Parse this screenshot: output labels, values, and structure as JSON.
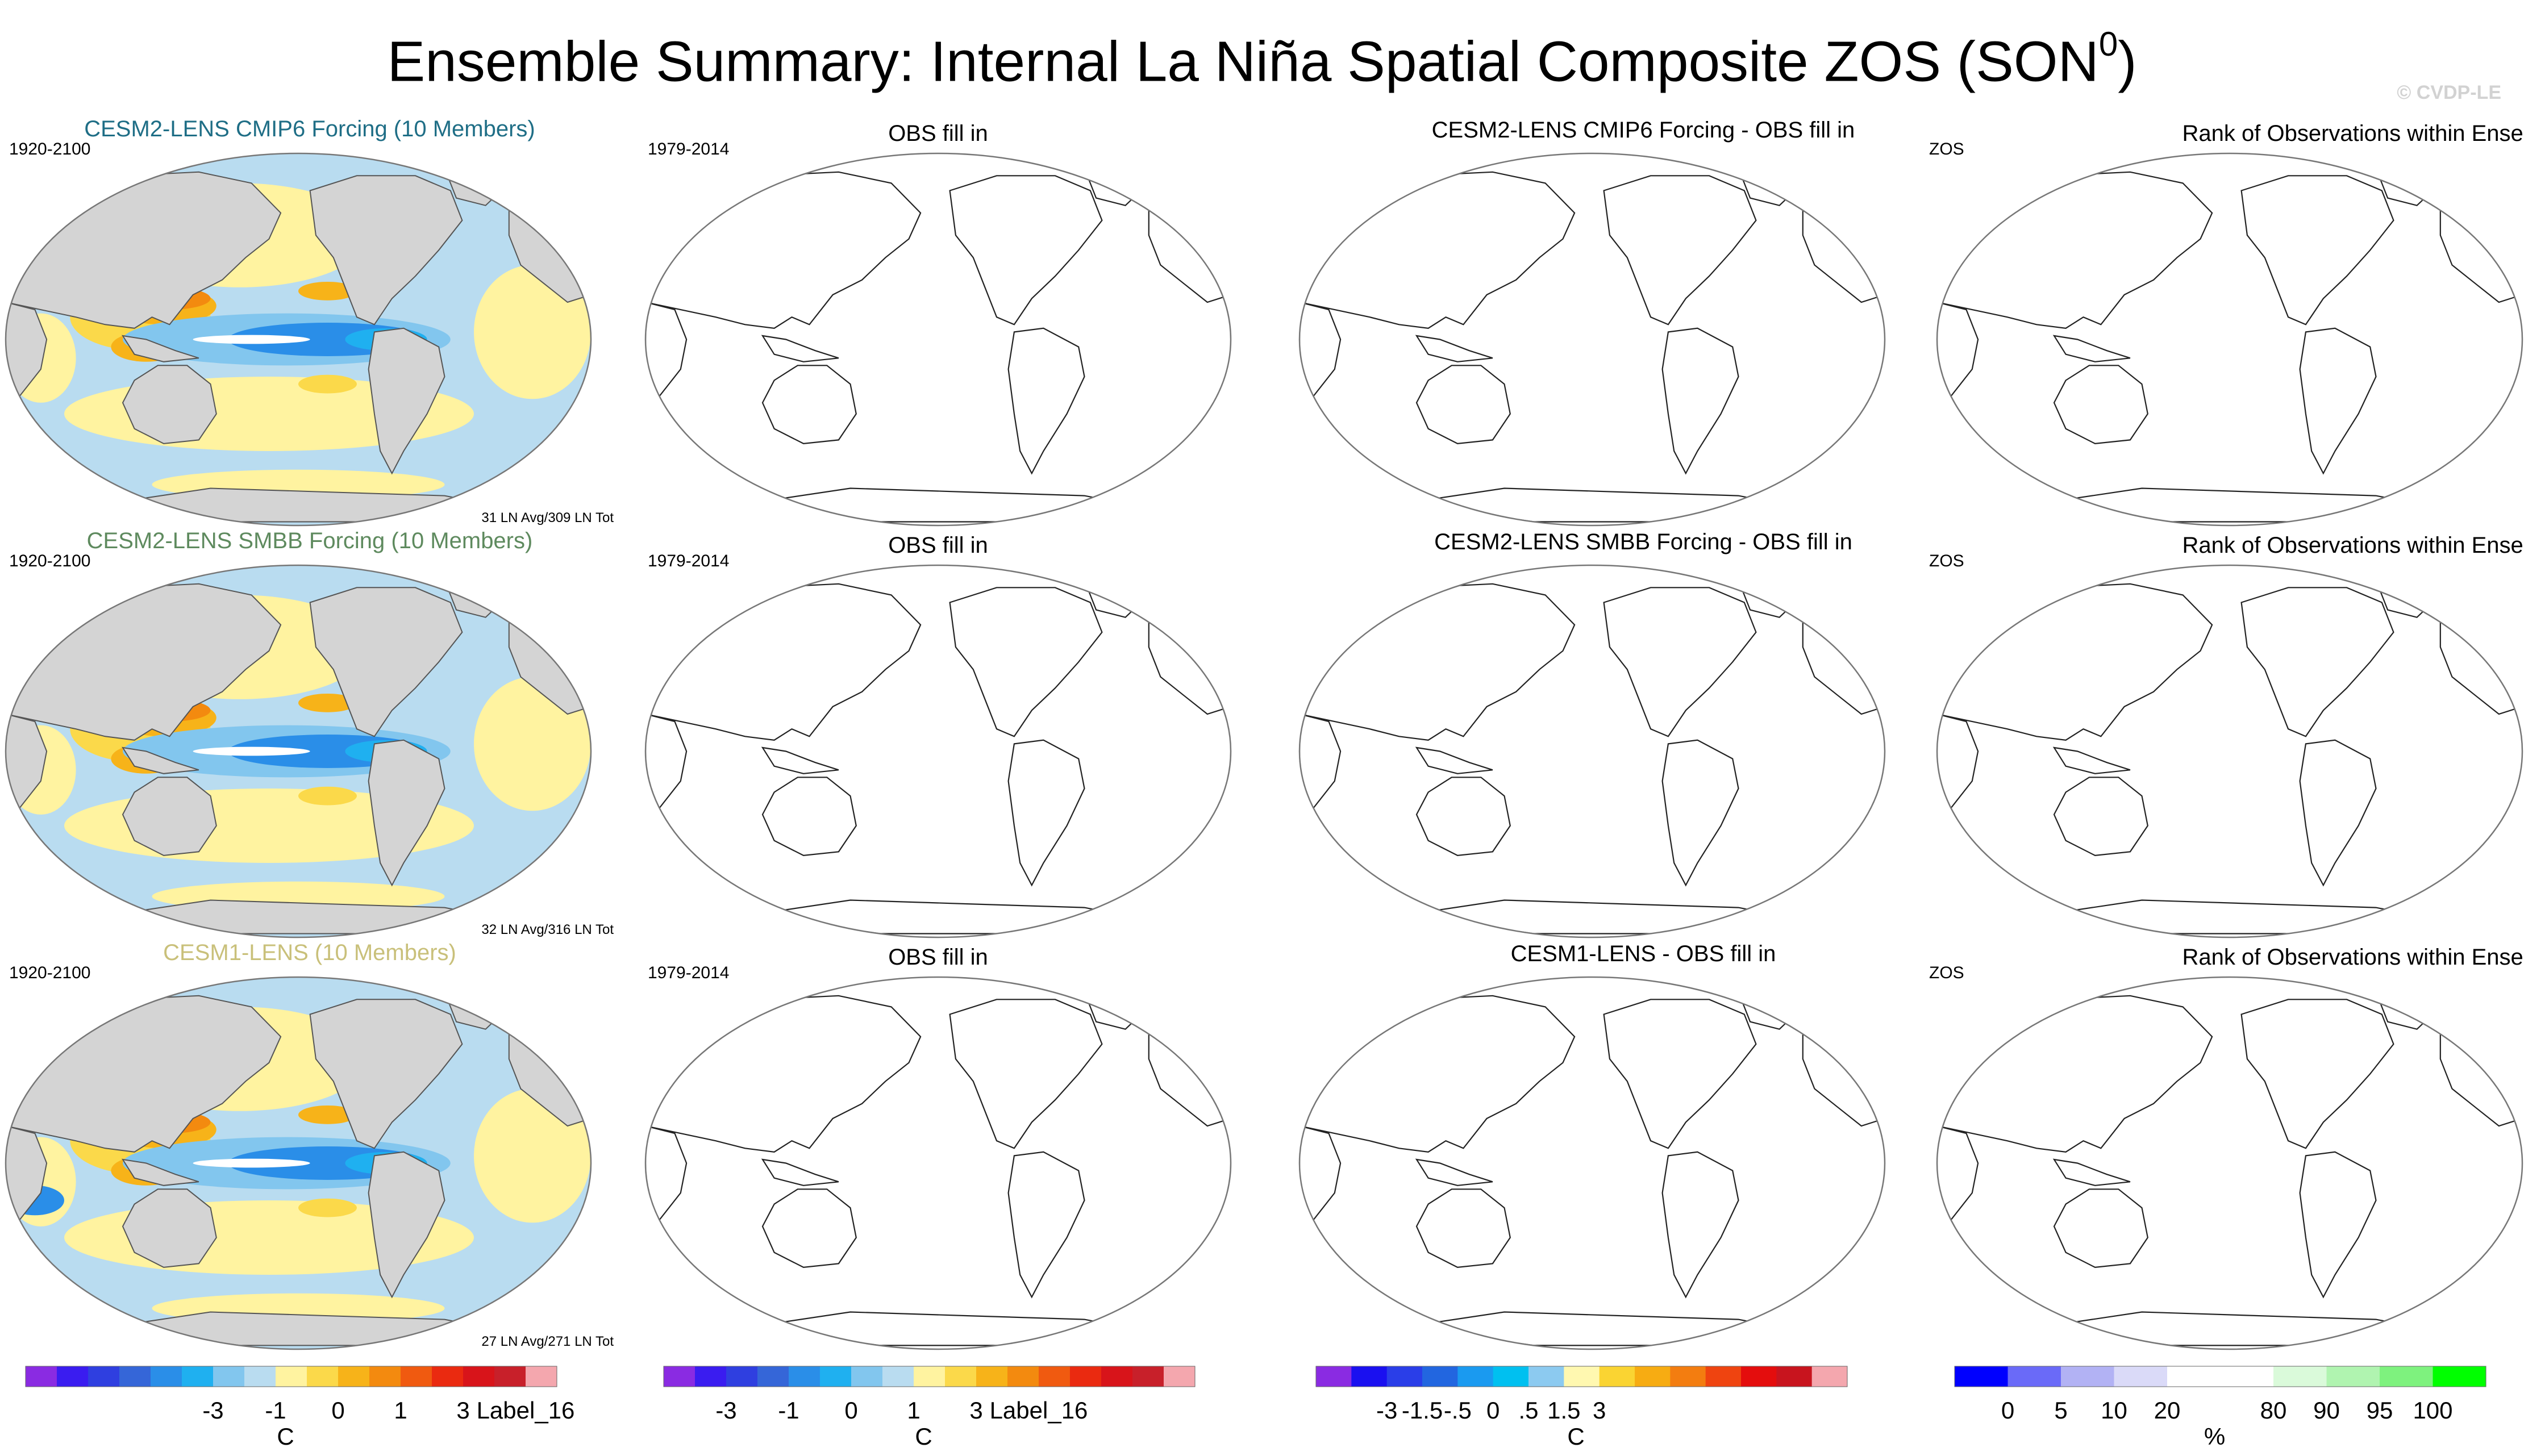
{
  "title": {
    "main": "Ensemble Summary: Internal La Niña Spatial Composite ZOS (SON",
    "superscript": "0",
    "close": ")"
  },
  "watermark": "© CVDP-LE",
  "colors": {
    "row_titles": [
      "#1f6e86",
      "#5e8a5e",
      "#c9c07a"
    ],
    "land": "#d4d4d4",
    "ocean_base": "#b9dcf0",
    "outline": "#555555"
  },
  "rows": [
    {
      "model_title": "CESM2-LENS CMIP6 Forcing (10 Members)",
      "model_years": "1920-2100",
      "model_count": "31 LN Avg/309 LN Tot",
      "obs_title": "OBS fill in",
      "obs_years": "1979-2014",
      "diff_title": "CESM2-LENS CMIP6 Forcing - OBS fill in",
      "rank_title": "Rank of Observations within Ensemble",
      "rank_var": "ZOS"
    },
    {
      "model_title": "CESM2-LENS SMBB Forcing (10 Members)",
      "model_years": "1920-2100",
      "model_count": "32 LN Avg/316 LN Tot",
      "obs_title": "OBS fill in",
      "obs_years": "1979-2014",
      "diff_title": "CESM2-LENS SMBB Forcing - OBS fill in",
      "rank_title": "Rank of Observations within Ensemble",
      "rank_var": "ZOS"
    },
    {
      "model_title": "CESM1-LENS (10 Members)",
      "model_years": "1920-2100",
      "model_count": "27 LN Avg/271 LN Tot",
      "obs_title": "OBS fill in",
      "obs_years": "1979-2014",
      "diff_title": "CESM1-LENS - OBS fill in",
      "rank_title": "Rank of Observations within Ensemble",
      "rank_var": "ZOS"
    }
  ],
  "colorbars": [
    {
      "colors": [
        "#8a2be2",
        "#3a1cf0",
        "#2f3fe0",
        "#3566d8",
        "#2a8ee8",
        "#1fb0f0",
        "#82c6ee",
        "#b9dcf0",
        "#fff3a0",
        "#fbd94a",
        "#f7b319",
        "#f38a0f",
        "#f05a10",
        "#ea2a10",
        "#d8141a",
        "#c8202a",
        "#f4a7ae"
      ],
      "labels": [
        "-3",
        "-1",
        "0",
        "1",
        "3",
        "Label_16"
      ],
      "label_positions": [
        6,
        8,
        10,
        12,
        14,
        16
      ],
      "units": "C"
    },
    {
      "colors": [
        "#8a2be2",
        "#3a1cf0",
        "#2f3fe0",
        "#3566d8",
        "#2a8ee8",
        "#1fb0f0",
        "#82c6ee",
        "#b9dcf0",
        "#fff3a0",
        "#fbd94a",
        "#f7b319",
        "#f38a0f",
        "#f05a10",
        "#ea2a10",
        "#d8141a",
        "#c8202a",
        "#f4a7ae"
      ],
      "labels": [
        "-3",
        "-1",
        "0",
        "1",
        "3",
        "Label_16"
      ],
      "label_positions": [
        2,
        4,
        6,
        8,
        10,
        12
      ],
      "units": "C"
    },
    {
      "colors": [
        "#8a2be2",
        "#1a10f0",
        "#2a3ee8",
        "#2266e0",
        "#1a9af0",
        "#00c0f0",
        "#8ccaf0",
        "#fff8b0",
        "#fad432",
        "#f7ac12",
        "#f37d10",
        "#ef4410",
        "#e40d0d",
        "#c8141e",
        "#f4a7ae"
      ],
      "labels": [
        "-3",
        "-1.5",
        "-.5",
        "0",
        ".5",
        "1.5",
        "3"
      ],
      "label_positions": [
        2,
        3,
        4,
        5,
        6,
        7,
        8
      ],
      "units": "C"
    },
    {
      "colors": [
        "#0000ff",
        "#6a6af8",
        "#b2b2f4",
        "#dadaf8",
        "#ffffff",
        "#ffffff",
        "#dafada",
        "#b0f4b0",
        "#7ef27e",
        "#00ff00"
      ],
      "labels": [
        "0",
        "5",
        "10",
        "20",
        "80",
        "90",
        "95",
        "100"
      ],
      "label_positions": [
        1,
        2,
        3,
        4,
        6,
        7,
        8,
        9
      ],
      "units": "%"
    }
  ]
}
